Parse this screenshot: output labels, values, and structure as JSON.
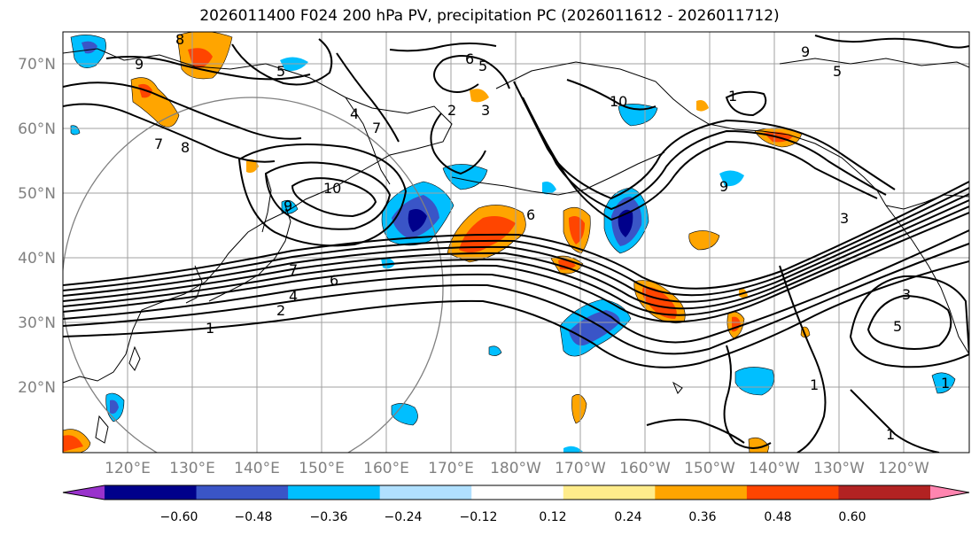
{
  "title": "2026011400 F024 200 hPa PV, precipitation PC (2026011612 - 2026011712)",
  "map": {
    "lat_labels": [
      "70°N",
      "60°N",
      "50°N",
      "40°N",
      "30°N",
      "20°N"
    ],
    "lon_labels": [
      "120°E",
      "130°E",
      "140°E",
      "150°E",
      "160°E",
      "170°E",
      "180°W",
      "170°W",
      "160°W",
      "150°W",
      "140°W",
      "130°W",
      "120°W"
    ],
    "pv_contour_labels": [
      "9",
      "5",
      "6",
      "5",
      "2",
      "3",
      "4",
      "10",
      "1",
      "5",
      "8",
      "7",
      "8",
      "7",
      "10",
      "9",
      "7",
      "6",
      "4",
      "2",
      "1",
      "3",
      "5",
      "1",
      "1",
      "6",
      "9",
      "9",
      "3",
      "1"
    ]
  },
  "colorbar": {
    "ticks": [
      "−0.60",
      "−0.48",
      "−0.36",
      "−0.24",
      "−0.12",
      "0.12",
      "0.24",
      "0.36",
      "0.48",
      "0.60"
    ],
    "colors": [
      "#9932cc",
      "#00008b",
      "#3a55c7",
      "#00bfff",
      "#b0e0ff",
      "#ffffff",
      "#ffec8b",
      "#ffa500",
      "#ff4500",
      "#b22222",
      "#ff85b0"
    ]
  }
}
